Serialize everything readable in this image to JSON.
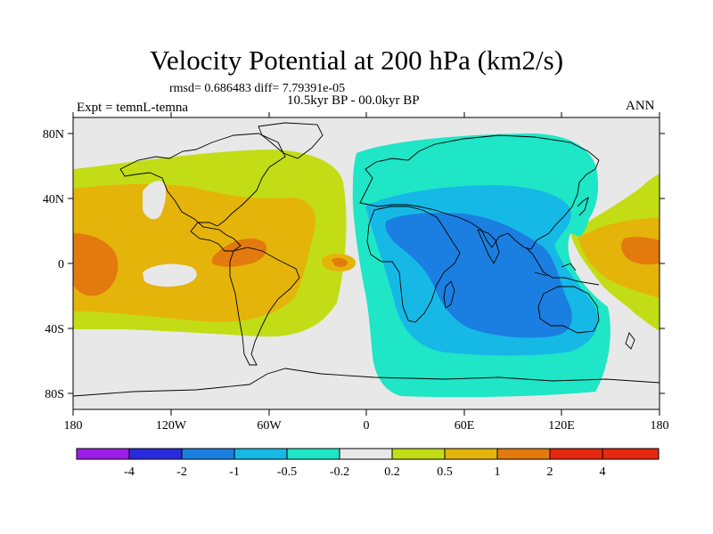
{
  "title": "Velocity Potential at 200 hPa (km2/s)",
  "stats_line": "rmsd= 0.686483 diff= 7.79391e-05",
  "period": "10.5kyr BP - 00.0kyr BP",
  "experiment": "Expt = temnL-temna",
  "season": "ANN",
  "map": {
    "lon_ticks": [
      "180",
      "120W",
      "60W",
      "0",
      "60E",
      "120E",
      "180"
    ],
    "lat_ticks": [
      "80N",
      "40N",
      "0",
      "40S",
      "80S"
    ]
  },
  "colorbar": {
    "labels": [
      "-4",
      "-2",
      "-1",
      "-0.5",
      "-0.2",
      "0.2",
      "0.5",
      "1",
      "2",
      "4"
    ],
    "colors": [
      "#9b1de8",
      "#2b2bde",
      "#1a7fe0",
      "#16b9e6",
      "#1ee6c6",
      "#e8e8e8",
      "#c2dd16",
      "#e5b40a",
      "#e27a0e",
      "#e6280f"
    ]
  },
  "field_colors": {
    "background": "#e8e8e8",
    "pos_0_2": "#c2dd16",
    "pos_0_5": "#e5b40a",
    "pos_1": "#e27a0e",
    "neg_0_2": "#1ee6c6",
    "neg_0_5": "#16b9e6",
    "neg_1": "#1a7fe0"
  }
}
